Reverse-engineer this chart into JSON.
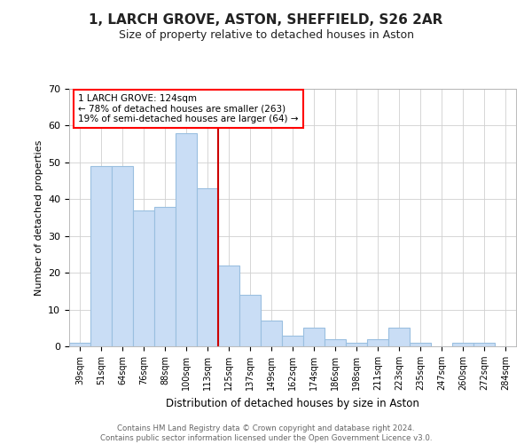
{
  "title1": "1, LARCH GROVE, ASTON, SHEFFIELD, S26 2AR",
  "title2": "Size of property relative to detached houses in Aston",
  "xlabel": "Distribution of detached houses by size in Aston",
  "ylabel": "Number of detached properties",
  "categories": [
    "39sqm",
    "51sqm",
    "64sqm",
    "76sqm",
    "88sqm",
    "100sqm",
    "113sqm",
    "125sqm",
    "137sqm",
    "149sqm",
    "162sqm",
    "174sqm",
    "186sqm",
    "198sqm",
    "211sqm",
    "223sqm",
    "235sqm",
    "247sqm",
    "260sqm",
    "272sqm",
    "284sqm"
  ],
  "values": [
    1,
    49,
    49,
    37,
    38,
    58,
    43,
    22,
    14,
    7,
    3,
    5,
    2,
    1,
    2,
    5,
    1,
    0,
    1,
    1,
    0
  ],
  "bar_color": "#c9ddf5",
  "bar_edge_color": "#9abfe0",
  "annotation_title": "1 LARCH GROVE: 124sqm",
  "annotation_line1": "← 78% of detached houses are smaller (263)",
  "annotation_line2": "19% of semi-detached houses are larger (64) →",
  "ylim": [
    0,
    70
  ],
  "yticks": [
    0,
    10,
    20,
    30,
    40,
    50,
    60,
    70
  ],
  "footer": "Contains HM Land Registry data © Crown copyright and database right 2024.\nContains public sector information licensed under the Open Government Licence v3.0.",
  "bg_color": "#ffffff",
  "grid_color": "#d0d0d0",
  "red_line_color": "#cc0000",
  "title1_fontsize": 11,
  "title2_fontsize": 9
}
